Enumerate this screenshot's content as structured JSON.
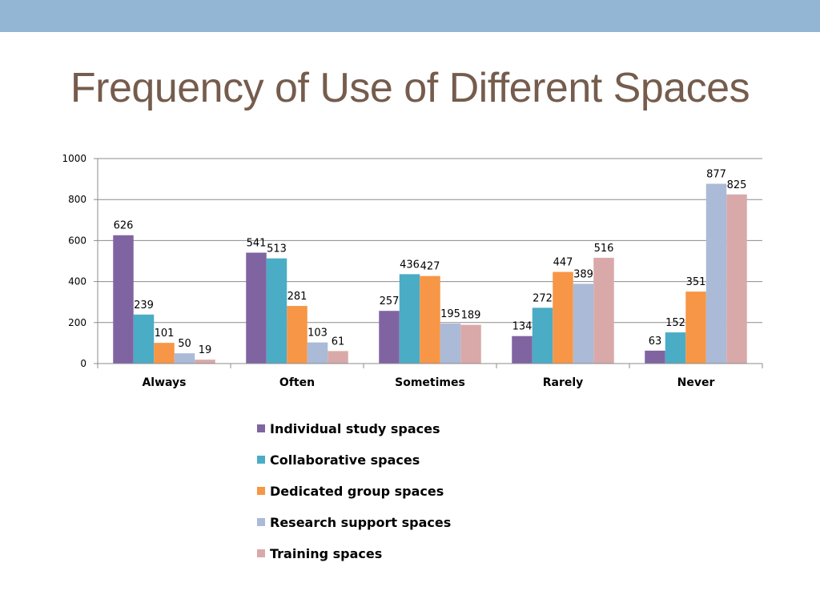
{
  "slide": {
    "title": "Frequency of Use of Different Spaces",
    "band_color": "#93b6d4",
    "title_color": "#755c4c"
  },
  "chart_data": {
    "type": "bar",
    "title": "",
    "xlabel": "",
    "ylabel": "",
    "ylim": [
      0,
      1000
    ],
    "yticks": [
      0,
      200,
      400,
      600,
      800,
      1000
    ],
    "grid": true,
    "legend_position": "bottom",
    "categories": [
      "Always",
      "Often",
      "Sometimes",
      "Rarely",
      "Never"
    ],
    "series": [
      {
        "name": "Individual study spaces",
        "color": "#8064a2",
        "values": [
          626,
          541,
          257,
          134,
          63
        ]
      },
      {
        "name": "Collaborative spaces",
        "color": "#4bacc6",
        "values": [
          239,
          513,
          436,
          272,
          152
        ]
      },
      {
        "name": "Dedicated group spaces",
        "color": "#f79646",
        "values": [
          101,
          281,
          427,
          447,
          351
        ]
      },
      {
        "name": "Research support spaces",
        "color": "#aabad7",
        "values": [
          50,
          103,
          195,
          389,
          877
        ]
      },
      {
        "name": "Training spaces",
        "color": "#d9a9a9",
        "values": [
          19,
          61,
          189,
          516,
          825
        ]
      }
    ]
  }
}
